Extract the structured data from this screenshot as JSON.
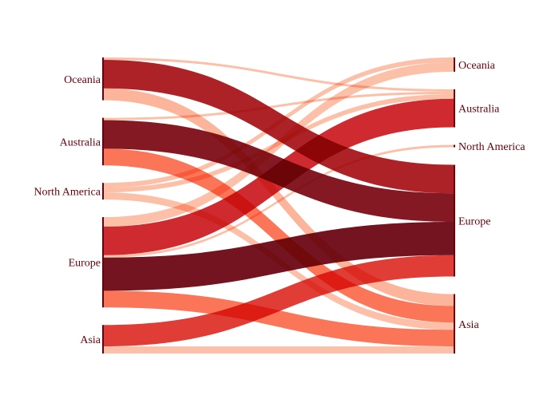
{
  "chart_data": {
    "type": "sankey",
    "title": "",
    "left_nodes": [
      "Oceania",
      "Australia",
      "North America",
      "Europe",
      "Asia"
    ],
    "right_nodes": [
      "Oceania",
      "Australia",
      "North America",
      "Europe",
      "Asia"
    ],
    "links": [
      {
        "source": "Oceania",
        "target": "Australia",
        "value": 1,
        "color": "#fcbba1"
      },
      {
        "source": "Oceania",
        "target": "Europe",
        "value": 12,
        "color": "#a50f15"
      },
      {
        "source": "Oceania",
        "target": "Asia",
        "value": 5,
        "color": "#fcae91"
      },
      {
        "source": "Australia",
        "target": "Australia",
        "value": 1,
        "color": "#fcbba1"
      },
      {
        "source": "Australia",
        "target": "Europe",
        "value": 12,
        "color": "#7b0510"
      },
      {
        "source": "Australia",
        "target": "Asia",
        "value": 7,
        "color": "#fb6a4a"
      },
      {
        "source": "North America",
        "target": "Oceania",
        "value": 2,
        "color": "#fcbba1"
      },
      {
        "source": "North America",
        "target": "Australia",
        "value": 2,
        "color": "#fcbba1"
      },
      {
        "source": "North America",
        "target": "Asia",
        "value": 3,
        "color": "#fcbba1"
      },
      {
        "source": "Europe",
        "target": "Oceania",
        "value": 4,
        "color": "#fcbba1"
      },
      {
        "source": "Europe",
        "target": "Australia",
        "value": 12,
        "color": "#cb181d"
      },
      {
        "source": "Europe",
        "target": "North America",
        "value": 1,
        "color": "#fcbba1"
      },
      {
        "source": "Europe",
        "target": "Europe",
        "value": 14,
        "color": "#67000d"
      },
      {
        "source": "Europe",
        "target": "Asia",
        "value": 7,
        "color": "#fb6a4a"
      },
      {
        "source": "Asia",
        "target": "Europe",
        "value": 9,
        "color": "#de2d26"
      },
      {
        "source": "Asia",
        "target": "Asia",
        "value": 3,
        "color": "#fcbba1"
      }
    ]
  }
}
